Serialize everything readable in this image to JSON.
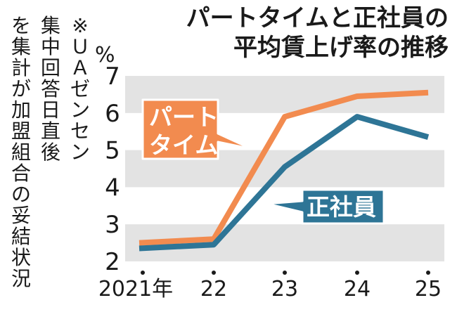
{
  "title_line1": "パートタイムと正社員の",
  "title_line2": "平均賃上げ率の推移",
  "note_columns": [
    "※ＵＡゼンセン",
    "集中回答日直後",
    "を集計が加盟組合の妥結状況"
  ],
  "note": "※ＵＡゼンセンが加盟組合の集中回答日直後の妥結状況を集計",
  "colors": {
    "part_time": "#f28b4f",
    "regular": "#2e7596",
    "band": "#e3e3e3",
    "label_stroke": "#ffffff"
  },
  "chart_data": {
    "type": "line",
    "title": "パートタイムと正社員の平均賃上げ率の推移",
    "unit": "%",
    "categories": [
      "2021年",
      "22",
      "23",
      "24",
      "25"
    ],
    "ylim": [
      2,
      7
    ],
    "yticks": [
      2,
      3,
      4,
      5,
      6,
      7
    ],
    "grid": "alternating horizontal bands",
    "series": [
      {
        "name": "パートタイム",
        "label_lines": [
          "パート",
          "タイム"
        ],
        "color": "#f28b4f",
        "values": [
          2.5,
          2.6,
          5.9,
          6.45,
          6.55
        ]
      },
      {
        "name": "正社員",
        "label_lines": [
          "正社員"
        ],
        "color": "#2e7596",
        "values": [
          2.35,
          2.45,
          4.55,
          5.9,
          5.35
        ]
      }
    ]
  }
}
